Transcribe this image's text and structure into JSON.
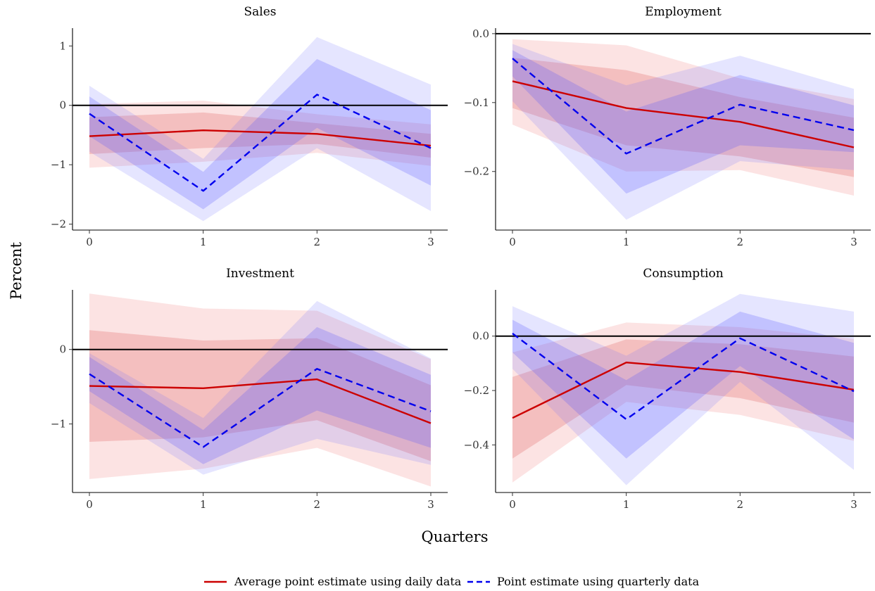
{
  "figure": {
    "ylabel": "Percent",
    "xlabel": "Quarters",
    "legend": {
      "placement": "bottom",
      "entries": [
        {
          "label": "Average point estimate using daily data",
          "color": "#cc0000",
          "style": "solid"
        },
        {
          "label": "Point estimate using quarterly data",
          "color": "#0000ee",
          "style": "dashed"
        }
      ]
    },
    "colors": {
      "daily_line": "#cc0000",
      "daily_band": "#e8707066",
      "quarterly_line": "#0000ee",
      "quarterly_band": "#6666ff",
      "zero_line": "#000000"
    }
  },
  "chart_data": [
    {
      "type": "line",
      "title": "Sales",
      "x": [
        0,
        1,
        2,
        3
      ],
      "ylim": [
        -2.1,
        1.3
      ],
      "yticks": [
        1,
        0,
        -1,
        -2
      ],
      "ytick_labels": [
        "1",
        "0",
        "−1",
        "−2"
      ],
      "xtick_labels": [
        "0",
        "1",
        "2",
        "3"
      ],
      "grid": false,
      "series": [
        {
          "name": "Average point estimate using daily data",
          "values": [
            -0.52,
            -0.42,
            -0.48,
            -0.68
          ],
          "band_inner": {
            "lower": [
              -0.82,
              -0.72,
              -0.65,
              -0.88
            ],
            "upper": [
              -0.2,
              -0.12,
              -0.3,
              -0.48
            ]
          },
          "band_outer": {
            "lower": [
              -1.05,
              -0.95,
              -0.8,
              -1.02
            ],
            "upper": [
              0.02,
              0.08,
              -0.15,
              -0.32
            ]
          }
        },
        {
          "name": "Point estimate using quarterly data",
          "values": [
            -0.14,
            -1.44,
            0.18,
            -0.72
          ],
          "band_inner": {
            "lower": [
              -0.52,
              -1.75,
              -0.38,
              -1.35
            ],
            "upper": [
              0.15,
              -1.12,
              0.78,
              -0.08
            ]
          },
          "band_outer": {
            "lower": [
              -0.78,
              -1.95,
              -0.72,
              -1.78
            ],
            "upper": [
              0.33,
              -0.9,
              1.15,
              0.35
            ]
          }
        }
      ]
    },
    {
      "type": "line",
      "title": "Employment",
      "x": [
        0,
        1,
        2,
        3
      ],
      "ylim": [
        -0.285,
        0.008
      ],
      "yticks": [
        0.0,
        -0.1,
        -0.2
      ],
      "ytick_labels": [
        "0.0",
        "−0.1",
        "−0.2"
      ],
      "xtick_labels": [
        "0",
        "1",
        "2",
        "3"
      ],
      "grid": false,
      "series": [
        {
          "name": "Average point estimate using daily data",
          "values": [
            -0.069,
            -0.108,
            -0.128,
            -0.165
          ],
          "band_inner": {
            "lower": [
              -0.108,
              -0.162,
              -0.178,
              -0.208
            ],
            "upper": [
              -0.035,
              -0.053,
              -0.092,
              -0.122
            ]
          },
          "band_outer": {
            "lower": [
              -0.132,
              -0.2,
              -0.198,
              -0.235
            ],
            "upper": [
              -0.008,
              -0.017,
              -0.065,
              -0.095
            ]
          }
        },
        {
          "name": "Point estimate using quarterly data",
          "values": [
            -0.036,
            -0.174,
            -0.103,
            -0.14
          ],
          "band_inner": {
            "lower": [
              -0.062,
              -0.232,
              -0.162,
              -0.172
            ],
            "upper": [
              -0.024,
              -0.113,
              -0.06,
              -0.104
            ]
          },
          "band_outer": {
            "lower": [
              -0.098,
              -0.27,
              -0.185,
              -0.198
            ],
            "upper": [
              -0.015,
              -0.075,
              -0.032,
              -0.08
            ]
          }
        }
      ]
    },
    {
      "type": "line",
      "title": "Investment",
      "x": [
        0,
        1,
        2,
        3
      ],
      "ylim": [
        -1.92,
        0.8
      ],
      "yticks": [
        0,
        -1
      ],
      "ytick_labels": [
        "0",
        "−1"
      ],
      "xtick_labels": [
        "0",
        "1",
        "2",
        "3"
      ],
      "grid": false,
      "series": [
        {
          "name": "Average point estimate using daily data",
          "values": [
            -0.49,
            -0.52,
            -0.4,
            -0.99
          ],
          "band_inner": {
            "lower": [
              -1.24,
              -1.18,
              -0.95,
              -1.5
            ],
            "upper": [
              0.26,
              0.12,
              0.15,
              -0.48
            ]
          },
          "band_outer": {
            "lower": [
              -1.74,
              -1.6,
              -1.32,
              -1.84
            ],
            "upper": [
              0.75,
              0.55,
              0.52,
              -0.13
            ]
          }
        },
        {
          "name": "Point estimate using quarterly data",
          "values": [
            -0.33,
            -1.31,
            -0.26,
            -0.83
          ],
          "band_inner": {
            "lower": [
              -0.56,
              -1.54,
              -0.82,
              -1.32
            ],
            "upper": [
              -0.1,
              -1.08,
              0.3,
              -0.34
            ]
          },
          "band_outer": {
            "lower": [
              -0.72,
              -1.68,
              -1.2,
              -1.55
            ],
            "upper": [
              -0.05,
              -0.92,
              0.65,
              -0.12
            ]
          }
        }
      ]
    },
    {
      "type": "line",
      "title": "Consumption",
      "x": [
        0,
        1,
        2,
        3
      ],
      "ylim": [
        -0.575,
        0.17
      ],
      "yticks": [
        0.0,
        -0.2,
        -0.4
      ],
      "ytick_labels": [
        "0.0",
        "−0.2",
        "−0.4"
      ],
      "xtick_labels": [
        "0",
        "1",
        "2",
        "3"
      ],
      "grid": false,
      "series": [
        {
          "name": "Average point estimate using daily data",
          "values": [
            -0.301,
            -0.097,
            -0.132,
            -0.197
          ],
          "band_inner": {
            "lower": [
              -0.45,
              -0.18,
              -0.228,
              -0.318
            ],
            "upper": [
              -0.15,
              -0.012,
              -0.03,
              -0.075
            ]
          },
          "band_outer": {
            "lower": [
              -0.538,
              -0.242,
              -0.29,
              -0.385
            ],
            "upper": [
              -0.06,
              0.05,
              0.033,
              -0.01
            ]
          }
        },
        {
          "name": "Point estimate using quarterly data",
          "values": [
            0.01,
            -0.306,
            -0.008,
            -0.203
          ],
          "band_inner": {
            "lower": [
              -0.06,
              -0.45,
              -0.11,
              -0.38
            ],
            "upper": [
              0.06,
              -0.162,
              0.09,
              -0.025
            ]
          },
          "band_outer": {
            "lower": [
              -0.12,
              -0.548,
              -0.168,
              -0.492
            ],
            "upper": [
              0.11,
              -0.072,
              0.155,
              0.09
            ]
          }
        }
      ]
    }
  ]
}
